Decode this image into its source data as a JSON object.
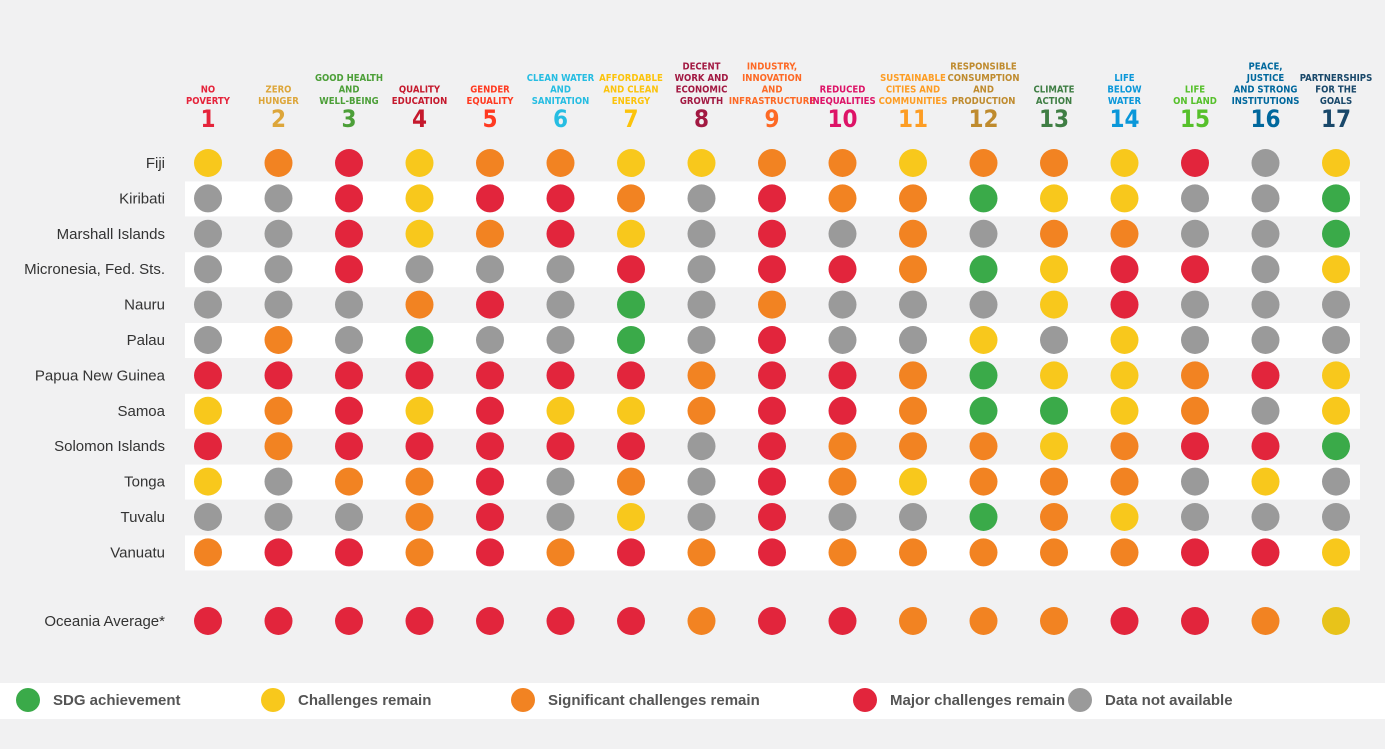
{
  "goals": [
    {
      "number": "1",
      "label": [
        "NO",
        "POVERTY"
      ],
      "color": "#e5243b"
    },
    {
      "number": "2",
      "label": [
        "ZERO",
        "HUNGER"
      ],
      "color": "#dda63a"
    },
    {
      "number": "3",
      "label": [
        "GOOD HEALTH",
        "AND",
        "WELL-BEING"
      ],
      "color": "#4c9f38"
    },
    {
      "number": "4",
      "label": [
        "QUALITY",
        "EDUCATION"
      ],
      "color": "#c5192d"
    },
    {
      "number": "5",
      "label": [
        "GENDER",
        "EQUALITY"
      ],
      "color": "#ff3a21"
    },
    {
      "number": "6",
      "label": [
        "CLEAN WATER",
        "AND",
        "SANITATION"
      ],
      "color": "#26bde2"
    },
    {
      "number": "7",
      "label": [
        "AFFORDABLE",
        "AND CLEAN",
        "ENERGY"
      ],
      "color": "#fcc30b"
    },
    {
      "number": "8",
      "label": [
        "DECENT",
        "WORK AND",
        "ECONOMIC",
        "GROWTH"
      ],
      "color": "#a21942"
    },
    {
      "number": "9",
      "label": [
        "INDUSTRY,",
        "INNOVATION",
        "AND",
        "INFRASTRUCTURE"
      ],
      "color": "#fd6925"
    },
    {
      "number": "10",
      "label": [
        "REDUCED",
        "INEQUALITIES"
      ],
      "color": "#dd1367"
    },
    {
      "number": "11",
      "label": [
        "SUSTAINABLE",
        "CITIES AND",
        "COMMUNITIES"
      ],
      "color": "#fd9d24"
    },
    {
      "number": "12",
      "label": [
        "RESPONSIBLE",
        "CONSUMPTION",
        "AND",
        "PRODUCTION"
      ],
      "color": "#bf8b2e"
    },
    {
      "number": "13",
      "label": [
        "CLIMATE",
        "ACTION"
      ],
      "color": "#3f7e44"
    },
    {
      "number": "14",
      "label": [
        "LIFE",
        "BELOW",
        "WATER"
      ],
      "color": "#0a97d9"
    },
    {
      "number": "15",
      "label": [
        "LIFE",
        "ON LAND"
      ],
      "color": "#56c02b"
    },
    {
      "number": "16",
      "label": [
        "PEACE,",
        "JUSTICE",
        "AND STRONG",
        "INSTITUTIONS"
      ],
      "color": "#00689d"
    },
    {
      "number": "17",
      "label": [
        "PARTNERSHIPS",
        "FOR THE",
        "GOALS"
      ],
      "color": "#19486a"
    }
  ],
  "rows": [
    {
      "country": "Fiji",
      "cells": [
        "#f8c81c",
        "#f28322",
        "#e2253c",
        "#f8c81c",
        "#f28322",
        "#f28322",
        "#f8c81c",
        "#f8c81c",
        "#f28322",
        "#f28322",
        "#f8c81c",
        "#f28322",
        "#f28322",
        "#f8c81c",
        "#e2253c",
        "#9a9a9a",
        "#f8c81c"
      ]
    },
    {
      "country": "Kiribati",
      "cells": [
        "#9a9a9a",
        "#9a9a9a",
        "#e2253c",
        "#f8c81c",
        "#e2253c",
        "#e2253c",
        "#f28322",
        "#9a9a9a",
        "#e2253c",
        "#f28322",
        "#f28322",
        "#3aaa49",
        "#f8c81c",
        "#f8c81c",
        "#9a9a9a",
        "#9a9a9a",
        "#3aaa49"
      ]
    },
    {
      "country": "Marshall Islands",
      "cells": [
        "#9a9a9a",
        "#9a9a9a",
        "#e2253c",
        "#f8c81c",
        "#f28322",
        "#e2253c",
        "#f8c81c",
        "#9a9a9a",
        "#e2253c",
        "#9a9a9a",
        "#f28322",
        "#9a9a9a",
        "#f28322",
        "#f28322",
        "#9a9a9a",
        "#9a9a9a",
        "#3aaa49"
      ]
    },
    {
      "country": "Micronesia, Fed. Sts.",
      "cells": [
        "#9a9a9a",
        "#9a9a9a",
        "#e2253c",
        "#9a9a9a",
        "#9a9a9a",
        "#9a9a9a",
        "#e2253c",
        "#9a9a9a",
        "#e2253c",
        "#e2253c",
        "#f28322",
        "#3aaa49",
        "#f8c81c",
        "#e2253c",
        "#e2253c",
        "#9a9a9a",
        "#f8c81c"
      ]
    },
    {
      "country": "Nauru",
      "cells": [
        "#9a9a9a",
        "#9a9a9a",
        "#9a9a9a",
        "#f28322",
        "#e2253c",
        "#9a9a9a",
        "#3aaa49",
        "#9a9a9a",
        "#f28322",
        "#9a9a9a",
        "#9a9a9a",
        "#9a9a9a",
        "#f8c81c",
        "#e2253c",
        "#9a9a9a",
        "#9a9a9a",
        "#9a9a9a"
      ]
    },
    {
      "country": "Palau",
      "cells": [
        "#9a9a9a",
        "#f28322",
        "#9a9a9a",
        "#3aaa49",
        "#9a9a9a",
        "#9a9a9a",
        "#3aaa49",
        "#9a9a9a",
        "#e2253c",
        "#9a9a9a",
        "#9a9a9a",
        "#f8c81c",
        "#9a9a9a",
        "#f8c81c",
        "#9a9a9a",
        "#9a9a9a",
        "#9a9a9a"
      ]
    },
    {
      "country": "Papua New Guinea",
      "cells": [
        "#e2253c",
        "#e2253c",
        "#e2253c",
        "#e2253c",
        "#e2253c",
        "#e2253c",
        "#e2253c",
        "#f28322",
        "#e2253c",
        "#e2253c",
        "#f28322",
        "#3aaa49",
        "#f8c81c",
        "#f8c81c",
        "#f28322",
        "#e2253c",
        "#f8c81c"
      ]
    },
    {
      "country": "Samoa",
      "cells": [
        "#f8c81c",
        "#f28322",
        "#e2253c",
        "#f8c81c",
        "#e2253c",
        "#f8c81c",
        "#f8c81c",
        "#f28322",
        "#e2253c",
        "#e2253c",
        "#f28322",
        "#3aaa49",
        "#3aaa49",
        "#f8c81c",
        "#f28322",
        "#9a9a9a",
        "#f8c81c"
      ]
    },
    {
      "country": "Solomon Islands",
      "cells": [
        "#e2253c",
        "#f28322",
        "#e2253c",
        "#e2253c",
        "#e2253c",
        "#e2253c",
        "#e2253c",
        "#9a9a9a",
        "#e2253c",
        "#f28322",
        "#f28322",
        "#f28322",
        "#f8c81c",
        "#f28322",
        "#e2253c",
        "#e2253c",
        "#3aaa49"
      ]
    },
    {
      "country": "Tonga",
      "cells": [
        "#f8c81c",
        "#9a9a9a",
        "#f28322",
        "#f28322",
        "#e2253c",
        "#9a9a9a",
        "#f28322",
        "#9a9a9a",
        "#e2253c",
        "#f28322",
        "#f8c81c",
        "#f28322",
        "#f28322",
        "#f28322",
        "#9a9a9a",
        "#f8c81c",
        "#9a9a9a"
      ]
    },
    {
      "country": "Tuvalu",
      "cells": [
        "#9a9a9a",
        "#9a9a9a",
        "#9a9a9a",
        "#f28322",
        "#e2253c",
        "#9a9a9a",
        "#f8c81c",
        "#9a9a9a",
        "#e2253c",
        "#9a9a9a",
        "#9a9a9a",
        "#3aaa49",
        "#f28322",
        "#f8c81c",
        "#9a9a9a",
        "#9a9a9a",
        "#9a9a9a"
      ]
    },
    {
      "country": "Vanuatu",
      "cells": [
        "#f28322",
        "#e2253c",
        "#e2253c",
        "#f28322",
        "#e2253c",
        "#f28322",
        "#e2253c",
        "#f28322",
        "#e2253c",
        "#f28322",
        "#f28322",
        "#f28322",
        "#f28322",
        "#f28322",
        "#e2253c",
        "#e2253c",
        "#f8c81c"
      ]
    }
  ],
  "average": {
    "country": "Oceania Average*",
    "cells": [
      "#e2253c",
      "#e2253c",
      "#e2253c",
      "#e2253c",
      "#e2253c",
      "#e2253c",
      "#e2253c",
      "#f28322",
      "#e2253c",
      "#e2253c",
      "#f28322",
      "#f28322",
      "#f28322",
      "#e2253c",
      "#e2253c",
      "#f28322",
      "#e8c31a"
    ]
  },
  "legend": [
    {
      "label": "SDG achievement",
      "color": "#3aaa49"
    },
    {
      "label": "Challenges remain",
      "color": "#f8c81c"
    },
    {
      "label": "Significant challenges remain",
      "color": "#f28322"
    },
    {
      "label": "Major challenges remain",
      "color": "#e2253c"
    },
    {
      "label": "Data not available",
      "color": "#9a9a9a"
    }
  ]
}
